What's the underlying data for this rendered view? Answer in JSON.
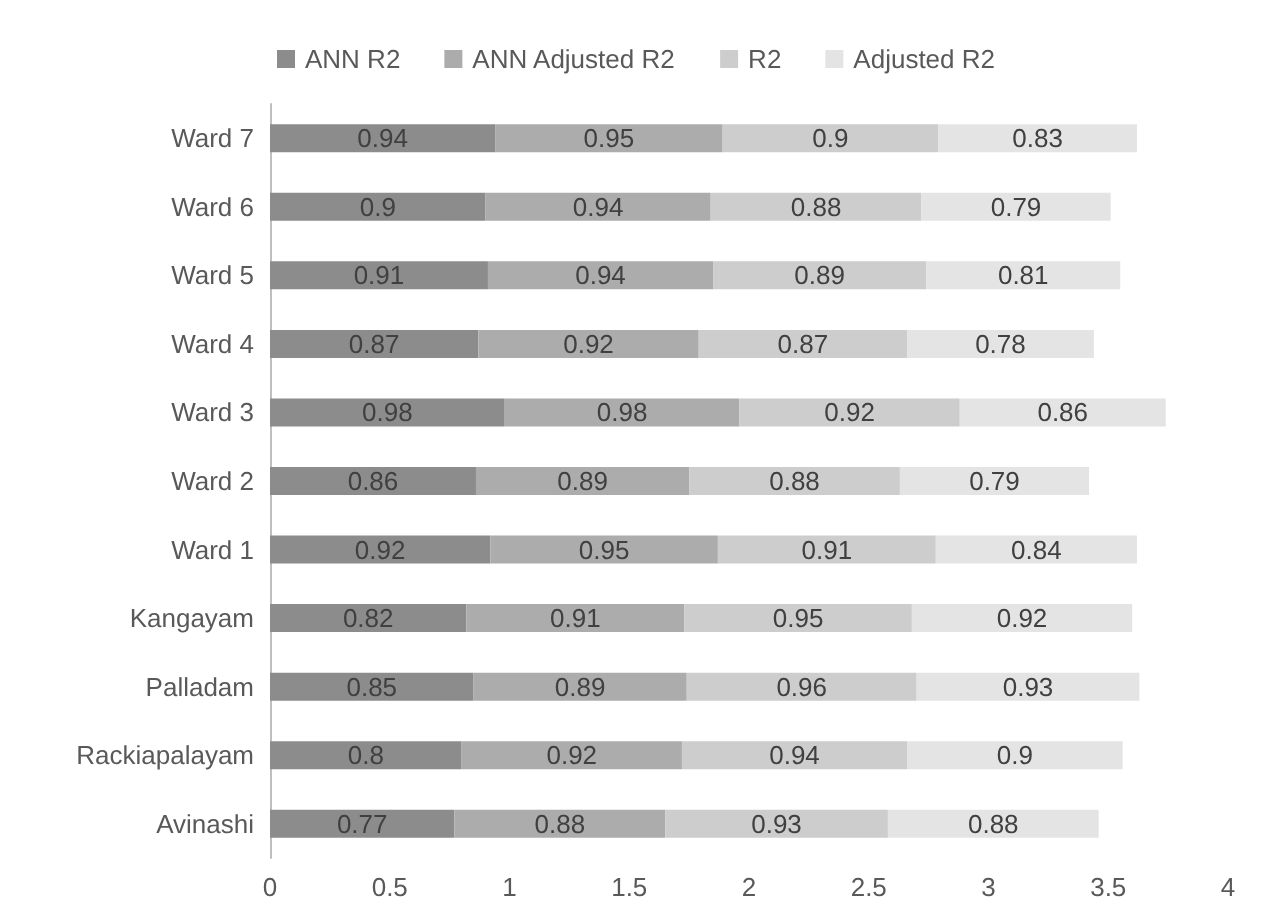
{
  "chart_data": {
    "type": "bar",
    "orientation": "horizontal",
    "stacked": true,
    "data_labels": true,
    "legend": "top",
    "grid": false,
    "categories": [
      "Ward 7",
      "Ward 6",
      "Ward 5",
      "Ward 4",
      "Ward 3",
      "Ward 2",
      "Ward 1",
      "Kangayam",
      "Palladam",
      "Rackiapalayam",
      "Avinashi"
    ],
    "xlim": [
      0,
      4
    ],
    "xticks": [
      0,
      0.5,
      1,
      1.5,
      2,
      2.5,
      3,
      3.5,
      4
    ],
    "series": [
      {
        "name": "ANN R2",
        "color": "#8c8c8c",
        "values": [
          0.94,
          0.9,
          0.91,
          0.87,
          0.98,
          0.86,
          0.92,
          0.82,
          0.85,
          0.8,
          0.77
        ]
      },
      {
        "name": "ANN Adjusted R2",
        "color": "#acacac",
        "values": [
          0.95,
          0.94,
          0.94,
          0.92,
          0.98,
          0.89,
          0.95,
          0.91,
          0.89,
          0.92,
          0.88
        ]
      },
      {
        "name": "R2",
        "color": "#cdcdcd",
        "values": [
          0.9,
          0.88,
          0.89,
          0.87,
          0.92,
          0.88,
          0.91,
          0.95,
          0.96,
          0.94,
          0.93
        ]
      },
      {
        "name": "Adjusted R2",
        "color": "#e4e4e4",
        "values": [
          0.83,
          0.79,
          0.81,
          0.78,
          0.86,
          0.79,
          0.84,
          0.92,
          0.93,
          0.9,
          0.88
        ]
      }
    ]
  }
}
